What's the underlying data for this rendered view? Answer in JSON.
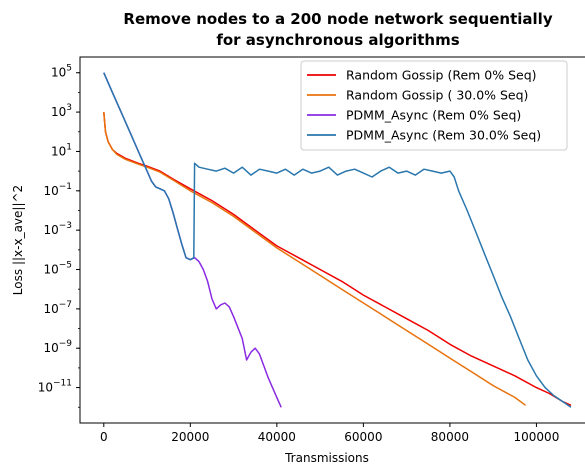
{
  "chart_data": {
    "type": "line",
    "title_line1": "Remove nodes to a 200 node network sequentially",
    "title_line2": "for asynchronous algorithms",
    "xlabel": "Transmissions",
    "ylabel": "Loss ||x-x_ave||^2",
    "xlim": [
      -5500,
      114000
    ],
    "ylim_log10": [
      -12.8,
      5.8
    ],
    "y_scale": "log",
    "grid": false,
    "legend_position": "top-right",
    "x_ticks": [
      {
        "value": 0,
        "label": "0"
      },
      {
        "value": 20000,
        "label": "20000"
      },
      {
        "value": 40000,
        "label": "40000"
      },
      {
        "value": 60000,
        "label": "60000"
      },
      {
        "value": 80000,
        "label": "80000"
      },
      {
        "value": 100000,
        "label": "100000"
      }
    ],
    "y_ticks": [
      {
        "exp": 5,
        "label": "5"
      },
      {
        "exp": 3,
        "label": "3"
      },
      {
        "exp": 1,
        "label": "1"
      },
      {
        "exp": -1,
        "label": "−1"
      },
      {
        "exp": -3,
        "label": "−3"
      },
      {
        "exp": -5,
        "label": "−5"
      },
      {
        "exp": -7,
        "label": "−7"
      },
      {
        "exp": -9,
        "label": "−9"
      },
      {
        "exp": -11,
        "label": "−11"
      }
    ],
    "series": [
      {
        "name": "Random Gossip (Rem 0% Seq)",
        "color": "#ee0000",
        "points": [
          [
            0,
            3.0
          ],
          [
            400,
            2.0
          ],
          [
            1000,
            1.5
          ],
          [
            2000,
            1.1
          ],
          [
            3000,
            0.9
          ],
          [
            5000,
            0.65
          ],
          [
            8000,
            0.4
          ],
          [
            10000,
            0.25
          ],
          [
            13000,
            0.0
          ],
          [
            16000,
            -0.4
          ],
          [
            20000,
            -0.9
          ],
          [
            25000,
            -1.5
          ],
          [
            30000,
            -2.2
          ],
          [
            35000,
            -3.0
          ],
          [
            40000,
            -3.8
          ],
          [
            45000,
            -4.4
          ],
          [
            50000,
            -5.0
          ],
          [
            55000,
            -5.6
          ],
          [
            60000,
            -6.3
          ],
          [
            65000,
            -6.9
          ],
          [
            70000,
            -7.5
          ],
          [
            75000,
            -8.1
          ],
          [
            80000,
            -8.8
          ],
          [
            85000,
            -9.4
          ],
          [
            90000,
            -9.9
          ],
          [
            95000,
            -10.4
          ],
          [
            100000,
            -11.0
          ],
          [
            103000,
            -11.3
          ],
          [
            106000,
            -11.7
          ],
          [
            108000,
            -11.9
          ]
        ]
      },
      {
        "name": "Random Gossip ( 30.0% Seq)",
        "color": "#e8720c",
        "points": [
          [
            0,
            3.0
          ],
          [
            400,
            2.0
          ],
          [
            1000,
            1.5
          ],
          [
            2000,
            1.1
          ],
          [
            3000,
            0.85
          ],
          [
            5000,
            0.6
          ],
          [
            8000,
            0.35
          ],
          [
            10000,
            0.2
          ],
          [
            13000,
            -0.05
          ],
          [
            16000,
            -0.45
          ],
          [
            20000,
            -1.0
          ],
          [
            25000,
            -1.6
          ],
          [
            30000,
            -2.3
          ],
          [
            35000,
            -3.1
          ],
          [
            40000,
            -3.9
          ],
          [
            45000,
            -4.6
          ],
          [
            50000,
            -5.3
          ],
          [
            55000,
            -6.0
          ],
          [
            60000,
            -6.7
          ],
          [
            65000,
            -7.4
          ],
          [
            70000,
            -8.1
          ],
          [
            75000,
            -8.8
          ],
          [
            80000,
            -9.5
          ],
          [
            85000,
            -10.2
          ],
          [
            90000,
            -10.9
          ],
          [
            95000,
            -11.5
          ],
          [
            97500,
            -11.9
          ]
        ]
      },
      {
        "name": "PDMM_Async (Rem 0% Seq)",
        "color": "#8a2be2",
        "points": [
          [
            0,
            5.0
          ],
          [
            2000,
            4.0
          ],
          [
            4000,
            3.0
          ],
          [
            6000,
            2.0
          ],
          [
            8000,
            1.0
          ],
          [
            9000,
            0.5
          ],
          [
            10000,
            0.0
          ],
          [
            11000,
            -0.5
          ],
          [
            12000,
            -0.8
          ],
          [
            13000,
            -0.9
          ],
          [
            14000,
            -1.0
          ],
          [
            15000,
            -1.4
          ],
          [
            16000,
            -2.1
          ],
          [
            17000,
            -2.9
          ],
          [
            18000,
            -3.7
          ],
          [
            19000,
            -4.4
          ],
          [
            20000,
            -4.5
          ],
          [
            21000,
            -4.4
          ],
          [
            22000,
            -4.6
          ],
          [
            23000,
            -5.0
          ],
          [
            24000,
            -5.6
          ],
          [
            25000,
            -6.5
          ],
          [
            26000,
            -7.0
          ],
          [
            27000,
            -6.8
          ],
          [
            28000,
            -6.7
          ],
          [
            29000,
            -6.9
          ],
          [
            30000,
            -7.4
          ],
          [
            32000,
            -8.5
          ],
          [
            33000,
            -9.6
          ],
          [
            34000,
            -9.2
          ],
          [
            35000,
            -9.0
          ],
          [
            36000,
            -9.3
          ],
          [
            38000,
            -10.5
          ],
          [
            40000,
            -11.5
          ],
          [
            41000,
            -12.0
          ]
        ]
      },
      {
        "name": "PDMM_Async (Rem 30.0% Seq)",
        "color": "#2a77ad",
        "points": [
          [
            0,
            5.0
          ],
          [
            2000,
            4.0
          ],
          [
            4000,
            3.0
          ],
          [
            6000,
            2.0
          ],
          [
            8000,
            1.0
          ],
          [
            9000,
            0.5
          ],
          [
            10000,
            0.0
          ],
          [
            11000,
            -0.5
          ],
          [
            12000,
            -0.8
          ],
          [
            13000,
            -0.9
          ],
          [
            14000,
            -1.0
          ],
          [
            15000,
            -1.4
          ],
          [
            16000,
            -2.1
          ],
          [
            17000,
            -2.9
          ],
          [
            18000,
            -3.7
          ],
          [
            19000,
            -4.4
          ],
          [
            20000,
            -4.5
          ],
          [
            20800,
            -4.4
          ],
          [
            21000,
            0.4
          ],
          [
            22000,
            0.2
          ],
          [
            24000,
            0.1
          ],
          [
            26000,
            0.0
          ],
          [
            28000,
            0.15
          ],
          [
            30000,
            -0.1
          ],
          [
            32000,
            0.2
          ],
          [
            34000,
            -0.2
          ],
          [
            36000,
            0.1
          ],
          [
            38000,
            0.0
          ],
          [
            40000,
            -0.1
          ],
          [
            42000,
            0.1
          ],
          [
            44000,
            -0.2
          ],
          [
            46000,
            0.1
          ],
          [
            48000,
            -0.1
          ],
          [
            50000,
            0.0
          ],
          [
            52000,
            0.2
          ],
          [
            54000,
            -0.2
          ],
          [
            56000,
            0.0
          ],
          [
            58000,
            0.1
          ],
          [
            60000,
            -0.1
          ],
          [
            62000,
            -0.3
          ],
          [
            64000,
            0.0
          ],
          [
            66000,
            0.2
          ],
          [
            68000,
            -0.1
          ],
          [
            70000,
            0.0
          ],
          [
            72000,
            -0.2
          ],
          [
            74000,
            0.1
          ],
          [
            76000,
            0.0
          ],
          [
            78000,
            -0.1
          ],
          [
            80000,
            0.0
          ],
          [
            81000,
            -0.3
          ],
          [
            82000,
            -1.0
          ],
          [
            84000,
            -2.0
          ],
          [
            86000,
            -3.1
          ],
          [
            88000,
            -4.2
          ],
          [
            90000,
            -5.3
          ],
          [
            92000,
            -6.4
          ],
          [
            94000,
            -7.4
          ],
          [
            96000,
            -8.5
          ],
          [
            98000,
            -9.6
          ],
          [
            100000,
            -10.4
          ],
          [
            102000,
            -11.0
          ],
          [
            104000,
            -11.4
          ],
          [
            106000,
            -11.7
          ],
          [
            108000,
            -12.0
          ]
        ]
      }
    ]
  }
}
